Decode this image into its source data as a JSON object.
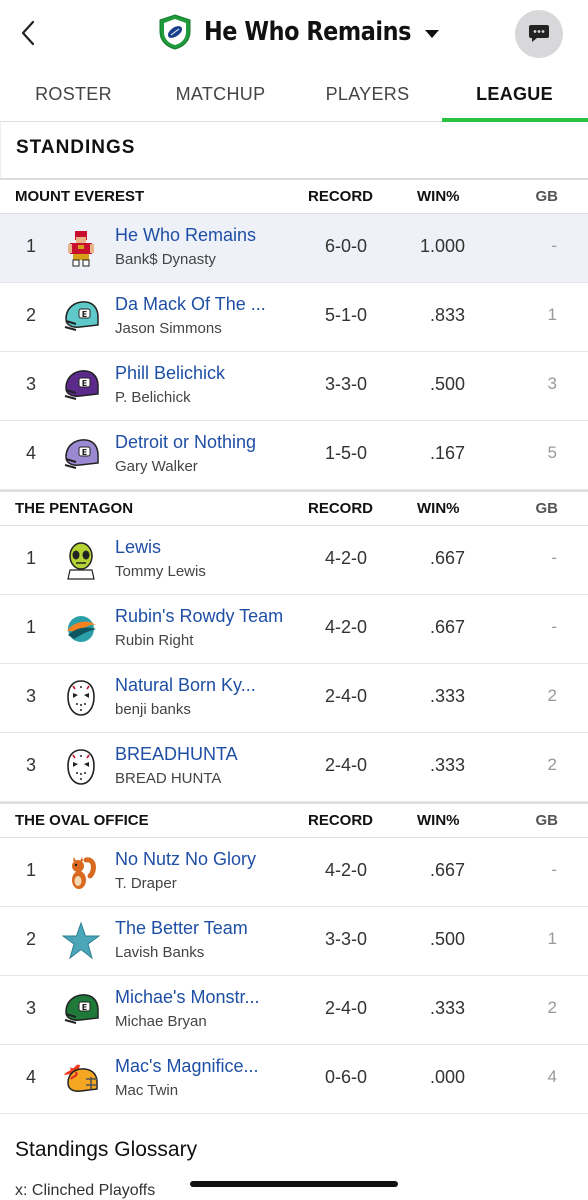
{
  "header": {
    "title": "He Who Remains",
    "back_icon": "chevron-left-icon",
    "chat_icon": "chat-bubble-icon"
  },
  "tabs": [
    {
      "label": "ROSTER",
      "active": false
    },
    {
      "label": "MATCHUP",
      "active": false
    },
    {
      "label": "PLAYERS",
      "active": false
    },
    {
      "label": "LEAGUE",
      "active": true
    }
  ],
  "accent_color": "#29c33f",
  "link_color": "#1f4fa5",
  "standings_title": "STANDINGS",
  "columns": {
    "record": "RECORD",
    "win": "WIN%",
    "gb": "GB"
  },
  "divisions": [
    {
      "name": "MOUNT EVEREST",
      "teams": [
        {
          "rank": "1",
          "team": "He Who Remains",
          "owner": "Bank$ Dynasty",
          "record": "6-0-0",
          "win": "1.000",
          "gb": "-",
          "avatar": "pixel-player-icon",
          "highlight": true
        },
        {
          "rank": "2",
          "team": "Da Mack Of The ...",
          "owner": "Jason Simmons",
          "record": "5-1-0",
          "win": ".833",
          "gb": "1",
          "avatar": "teal-helmet-icon"
        },
        {
          "rank": "3",
          "team": "Phill Belichick",
          "owner": "P. Belichick",
          "record": "3-3-0",
          "win": ".500",
          "gb": "3",
          "avatar": "purple-helmet-icon"
        },
        {
          "rank": "4",
          "team": "Detroit or Nothing",
          "owner": "Gary Walker",
          "record": "1-5-0",
          "win": ".167",
          "gb": "5",
          "avatar": "lavender-helmet-icon"
        }
      ]
    },
    {
      "name": "THE PENTAGON",
      "teams": [
        {
          "rank": "1",
          "team": "Lewis",
          "owner": "Tommy Lewis",
          "record": "4-2-0",
          "win": ".667",
          "gb": "-",
          "avatar": "alien-icon"
        },
        {
          "rank": "1",
          "team": "Rubin's Rowdy Team",
          "owner": "Rubin Right",
          "record": "4-2-0",
          "win": ".667",
          "gb": "-",
          "avatar": "dolphin-logo-icon"
        },
        {
          "rank": "3",
          "team": "Natural Born Ky...",
          "owner": "benji banks",
          "record": "2-4-0",
          "win": ".333",
          "gb": "2",
          "avatar": "hockey-mask-icon"
        },
        {
          "rank": "3",
          "team": "BREADHUNTA",
          "owner": "BREAD HUNTA",
          "record": "2-4-0",
          "win": ".333",
          "gb": "2",
          "avatar": "hockey-mask-icon"
        }
      ]
    },
    {
      "name": "THE OVAL OFFICE",
      "teams": [
        {
          "rank": "1",
          "team": "No Nutz No Glory",
          "owner": "T. Draper",
          "record": "4-2-0",
          "win": ".667",
          "gb": "-",
          "avatar": "squirrel-icon"
        },
        {
          "rank": "2",
          "team": "The Better Team",
          "owner": "Lavish Banks",
          "record": "3-3-0",
          "win": ".500",
          "gb": "1",
          "avatar": "star-icon"
        },
        {
          "rank": "3",
          "team": "Michae's Monstr...",
          "owner": "Michae Bryan",
          "record": "2-4-0",
          "win": ".333",
          "gb": "2",
          "avatar": "green-helmet-icon"
        },
        {
          "rank": "4",
          "team": "Mac's Magnifice...",
          "owner": "Mac Twin",
          "record": "0-6-0",
          "win": ".000",
          "gb": "4",
          "avatar": "flaming-helmet-icon"
        }
      ]
    }
  ],
  "glossary": {
    "title": "Standings Glossary",
    "first_line": "x: Clinched Playoffs"
  }
}
